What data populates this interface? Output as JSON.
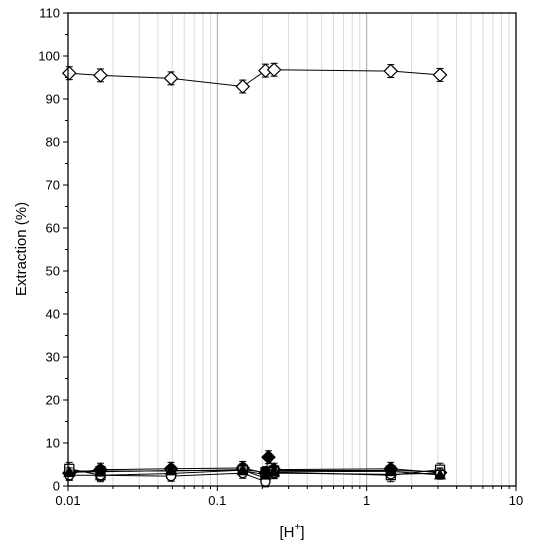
{
  "chart_data": {
    "type": "scatter",
    "title": "",
    "xlabel": "[H",
    "xlabel_sup": "+",
    "xlabel_close": "]",
    "ylabel": "Extraction (%)",
    "xscale": "log",
    "xlim": [
      0.01,
      10
    ],
    "ylim": [
      0,
      110
    ],
    "grid": "vertical minor and major lines",
    "legend": "none",
    "x_ticks": [
      0.01,
      0.1,
      1,
      10
    ],
    "x_tick_labels": [
      "0.01",
      "0.1",
      "1",
      "10"
    ],
    "y_ticks": [
      0,
      10,
      20,
      30,
      40,
      50,
      60,
      70,
      80,
      90,
      100,
      110
    ],
    "y_tick_labels": [
      "0",
      "10",
      "20",
      "30",
      "40",
      "50",
      "60",
      "70",
      "80",
      "90",
      "100",
      "110"
    ],
    "colors": {
      "line": "#000000",
      "grid_minor": "#d9d9d9",
      "grid_major": "#a6a6a6",
      "open_fill": "#ffffff",
      "filled": "#000000"
    },
    "series": [
      {
        "marker": "diamond-open",
        "x": [
          0.0102,
          0.0165,
          0.049,
          0.148,
          0.21,
          0.24,
          1.45,
          3.1
        ],
        "y": [
          96.0,
          95.5,
          94.8,
          92.9,
          96.6,
          96.8,
          96.5,
          95.6
        ],
        "err": [
          1.5,
          1.5,
          1.5,
          1.5,
          1.5,
          1.5,
          1.5,
          1.5
        ]
      },
      {
        "marker": "diamond-filled",
        "x": [
          0.0102,
          0.0165,
          0.049,
          0.148,
          0.21,
          0.22,
          0.24,
          1.45,
          3.1
        ],
        "y": [
          3.0,
          3.8,
          4.0,
          4.2,
          3.0,
          6.7,
          3.8,
          4.0,
          3.1
        ],
        "err": [
          1.5,
          1.5,
          1.5,
          1.5,
          1.5,
          1.5,
          1.5,
          1.5,
          1.5
        ]
      },
      {
        "marker": "square-filled",
        "x": [
          0.0102,
          0.0165,
          0.049,
          0.148,
          0.21,
          0.24,
          1.45,
          3.1
        ],
        "y": [
          3.5,
          3.5,
          3.5,
          3.8,
          3.2,
          3.6,
          3.6,
          3.3
        ],
        "err": [
          1.2,
          1.2,
          1.2,
          1.2,
          1.2,
          1.2,
          1.2,
          1.2
        ]
      },
      {
        "marker": "square-open",
        "x": [
          0.0102,
          0.0165,
          0.049,
          0.148,
          0.21,
          0.24,
          1.45,
          3.1
        ],
        "y": [
          4.0,
          2.5,
          2.9,
          3.7,
          1.8,
          3.2,
          2.5,
          3.8
        ],
        "err": [
          1.5,
          1.5,
          1.5,
          1.5,
          1.5,
          1.5,
          1.5,
          1.5
        ]
      },
      {
        "marker": "circle-open",
        "x": [
          0.0102,
          0.0165,
          0.049,
          0.148,
          0.21,
          0.24,
          1.45,
          3.1
        ],
        "y": [
          2.5,
          2.5,
          2.3,
          3.0,
          1.0,
          3.0,
          2.7,
          3.0
        ],
        "err": [
          1.2,
          1.2,
          1.2,
          1.2,
          1.2,
          1.2,
          1.2,
          1.2
        ]
      },
      {
        "marker": "triangle-filled",
        "x": [
          0.0102,
          0.0165,
          0.049,
          0.148,
          0.21,
          0.24,
          1.45,
          3.1
        ],
        "y": [
          3.2,
          3.3,
          3.6,
          3.6,
          2.6,
          3.3,
          3.4,
          2.6
        ],
        "err": [
          1.0,
          1.0,
          1.0,
          1.0,
          1.0,
          1.0,
          1.0,
          1.0
        ]
      }
    ]
  }
}
